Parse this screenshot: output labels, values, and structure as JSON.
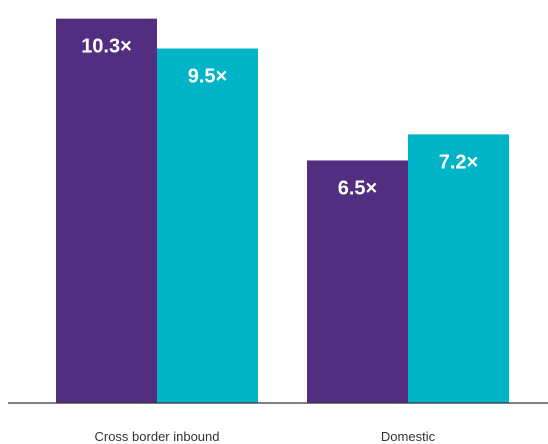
{
  "chart_data": {
    "type": "bar",
    "categories": [
      "Cross border inbound",
      "Domestic"
    ],
    "series": [
      {
        "values": [
          10.3,
          6.5
        ],
        "labels": [
          "10.3×",
          "6.5×"
        ],
        "color": "#522D80"
      },
      {
        "values": [
          9.5,
          7.2
        ],
        "labels": [
          "9.5×",
          "7.2×"
        ],
        "color": "#00B4C8"
      }
    ],
    "ylim": [
      0,
      10.8
    ],
    "grid": false,
    "legend": "none",
    "axis_color": "#333333"
  }
}
